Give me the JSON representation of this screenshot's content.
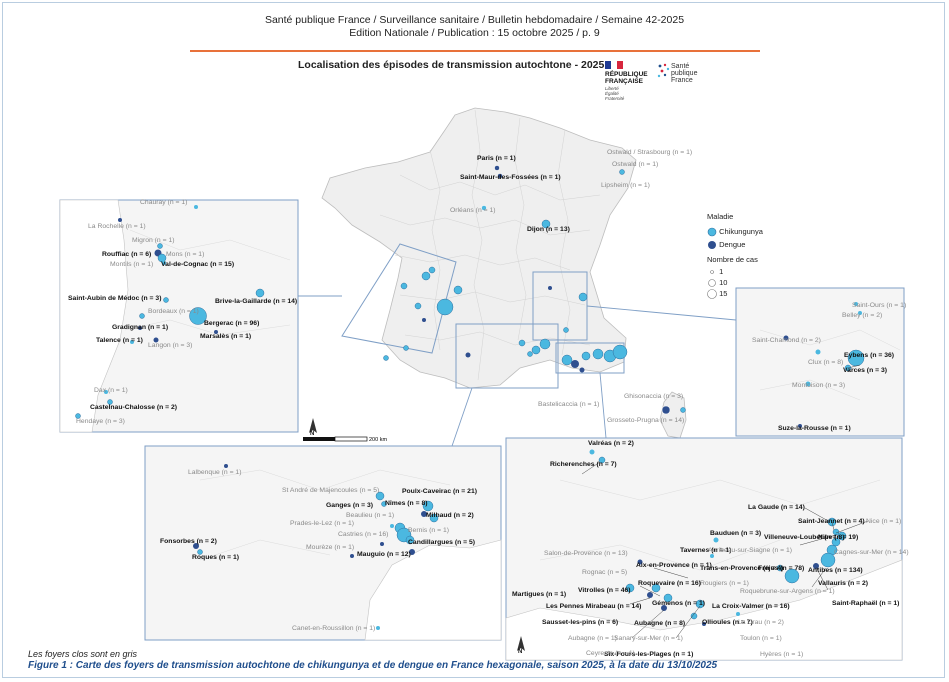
{
  "header": {
    "line1": "Santé publique France / Surveillance sanitaire / Bulletin hebdomadaire / Semaine 42-2025",
    "line2": "Edition Nationale / Publication : 15 octobre 2025 / p. 9"
  },
  "map_title": "Localisation des épisodes de transmission autochtone - 2025",
  "logos": {
    "republique_line1": "RÉPUBLIQUE",
    "republique_line2": "FRANÇAISE",
    "motto": [
      "Liberté",
      "Égalité",
      "Fraternité"
    ],
    "spf_line1": "Santé",
    "spf_line2": "publique",
    "spf_line3": "France"
  },
  "legend": {
    "title": "Maladie",
    "chikungunya": "Chikungunya",
    "dengue": "Dengue",
    "size_title": "Nombre de cas",
    "sizes": [
      "1",
      "10",
      "15"
    ]
  },
  "colors": {
    "chikungunya": "#4bb8e0",
    "dengue": "#2f4f8f",
    "inset_border": "#7f9fc6",
    "accent_rule": "#e8713a",
    "caption": "#1f4e8c"
  },
  "scale_label": "200 km",
  "north_label": "N",
  "footnote": "Les foyers clos sont en gris",
  "caption": "Figure 1 : Carte des foyers de transmission autochtone de chikungunya et de dengue en France hexagonale, saison 2025, à la date du 13/10/2025",
  "labels": {
    "main": [
      {
        "t": "Paris (n = 1)",
        "s": "b"
      },
      {
        "t": "Saint-Maur-des-Fossées (n = 1)",
        "s": "b"
      },
      {
        "t": "Orléans (n = 1)",
        "s": "g"
      },
      {
        "t": "Dijon (n = 13)",
        "s": "b"
      },
      {
        "t": "Ostwald / Strasbourg (n = 1)",
        "s": "g"
      },
      {
        "t": "Ostwald (n = 1)",
        "s": "g"
      },
      {
        "t": "Lipsheim (n = 1)",
        "s": "g"
      },
      {
        "t": "Bastelicaccia (n = 1)",
        "s": "g"
      },
      {
        "t": "Ghisonaccia (n = 3)",
        "s": "g"
      },
      {
        "t": "Grosseto-Prugna (n = 14)",
        "s": "g"
      }
    ],
    "southwest": [
      {
        "t": "Chauray (n = 1)",
        "s": "g"
      },
      {
        "t": "La Rochelle (n = 1)",
        "s": "g"
      },
      {
        "t": "Migron (n = 1)",
        "s": "g"
      },
      {
        "t": "Rouffiac (n = 6)",
        "s": "b"
      },
      {
        "t": "Mons (n = 1)",
        "s": "g"
      },
      {
        "t": "Montils (n = 1)",
        "s": "g"
      },
      {
        "t": "Val-de-Cognac (n = 15)",
        "s": "b"
      },
      {
        "t": "Saint-Aubin de Médoc (n = 3)",
        "s": "b"
      },
      {
        "t": "Bordeaux (n = 1)",
        "s": "g"
      },
      {
        "t": "Brive-la-Gaillarde (n = 14)",
        "s": "b"
      },
      {
        "t": "Gradignan (n = 1)",
        "s": "b"
      },
      {
        "t": "Bergerac (n = 96)",
        "s": "b"
      },
      {
        "t": "Talence (n = 1)",
        "s": "b"
      },
      {
        "t": "Marsalès (n =  1)",
        "s": "b"
      },
      {
        "t": "Langon (n = 3)",
        "s": "g"
      },
      {
        "t": "Dax (n = 1)",
        "s": "g"
      },
      {
        "t": "Castelnau-Chalosse (n = 2)",
        "s": "b"
      },
      {
        "t": "Hendaye (n = 3)",
        "s": "g"
      }
    ],
    "occitanie": [
      {
        "t": "Lalbenque (n = 1)",
        "s": "g"
      },
      {
        "t": "St André de Majencoules (n = 5)",
        "s": "g"
      },
      {
        "t": "Poulx-Caveirac (n = 21)",
        "s": "b"
      },
      {
        "t": "Ganges (n = 3)",
        "s": "b"
      },
      {
        "t": "Nîmes (n = 8)",
        "s": "b"
      },
      {
        "t": "Beaulieu (n = 1)",
        "s": "g"
      },
      {
        "t": "Milhaud (n = 2)",
        "s": "b"
      },
      {
        "t": "Prades-le-Lez (n = 1)",
        "s": "g"
      },
      {
        "t": "Bernis (n = 1)",
        "s": "g"
      },
      {
        "t": "Castries (n = 16)",
        "s": "g"
      },
      {
        "t": "Candillargues (n = 5)",
        "s": "b"
      },
      {
        "t": "Fonsorbes (n = 2)",
        "s": "b"
      },
      {
        "t": "Mourèze (n = 1)",
        "s": "g"
      },
      {
        "t": "Mauguio (n = 12)",
        "s": "b"
      },
      {
        "t": "Roques (n = 1)",
        "s": "b"
      },
      {
        "t": "Canet-en-Roussillon (n = 1)",
        "s": "g"
      }
    ],
    "rhone": [
      {
        "t": "Saint-Ours (n = 1)",
        "s": "g"
      },
      {
        "t": "Belley (n = 2)",
        "s": "g"
      },
      {
        "t": "Saint-Chamond (n = 2)",
        "s": "g"
      },
      {
        "t": "Clux (n = 8)",
        "s": "g"
      },
      {
        "t": "Eybens (n = 36)",
        "s": "b"
      },
      {
        "t": "Varces (n = 3)",
        "s": "b"
      },
      {
        "t": "Montoison (n = 3)",
        "s": "g"
      },
      {
        "t": "Suze-la-Rousse (n = 1)",
        "s": "b"
      }
    ],
    "paca": [
      {
        "t": "Valréas (n = 2)",
        "s": "b"
      },
      {
        "t": "Richerenches (n = 7)",
        "s": "b"
      },
      {
        "t": "La Gaude (n = 14)",
        "s": "b"
      },
      {
        "t": "Saint-Jeannet (n = 4)",
        "s": "b"
      },
      {
        "t": "Nice (n = 1)",
        "s": "g"
      },
      {
        "t": "Bauduen (n = 3)",
        "s": "b"
      },
      {
        "t": "Villeneuve-Loubet (n = 3)",
        "s": "b"
      },
      {
        "t": "Nice (n = 19)",
        "s": "b"
      },
      {
        "t": "Tavernes (n = 1)",
        "s": "b"
      },
      {
        "t": "Auribeau-sur-Siagne (n = 1)",
        "s": "g"
      },
      {
        "t": "Cagnes-sur-Mer (n = 14)",
        "s": "g"
      },
      {
        "t": "Salon-de-Provence (n = 13)",
        "s": "g"
      },
      {
        "t": "Aix-en-Provence (n = 1)",
        "s": "b"
      },
      {
        "t": "Trans-en-Provence (n = 4)",
        "s": "b"
      },
      {
        "t": "Fréjus (n = 78)",
        "s": "b"
      },
      {
        "t": "Antibes (n = 134)",
        "s": "b"
      },
      {
        "t": "Rognac (n = 5)",
        "s": "g"
      },
      {
        "t": "Vallauris (n = 2)",
        "s": "b"
      },
      {
        "t": "Roquevaire (n = 16)",
        "s": "b"
      },
      {
        "t": "Rougiers (n = 1)",
        "s": "g"
      },
      {
        "t": "Roquebrune-sur-Argens (n = 1)",
        "s": "g"
      },
      {
        "t": "Vitrolles (n = 46)",
        "s": "b"
      },
      {
        "t": "Martigues (n = 1)",
        "s": "b"
      },
      {
        "t": "Saint-Raphaël (n = 1)",
        "s": "b"
      },
      {
        "t": "Les Pennes Mirabeau (n = 14)",
        "s": "b"
      },
      {
        "t": "Gémenos (n = 1)",
        "s": "b"
      },
      {
        "t": "La Croix-Valmer (n = 16)",
        "s": "b"
      },
      {
        "t": "Sausset-les-pins (n = 6)",
        "s": "b"
      },
      {
        "t": "Aubagne (n = 8)",
        "s": "b"
      },
      {
        "t": "Ollioules (n = 7)",
        "s": "b"
      },
      {
        "t": "La Crau (n = 2)",
        "s": "g"
      },
      {
        "t": "Aubagne (n = 1)",
        "s": "g"
      },
      {
        "t": "Sanary-sur-Mer (n = 1)",
        "s": "g"
      },
      {
        "t": "Toulon (n = 1)",
        "s": "g"
      },
      {
        "t": "Six-Fours-les-Plages (n = 1)",
        "s": "b"
      },
      {
        "t": "Ceyreste (n = 1)",
        "s": "g"
      },
      {
        "t": "Hyères (n = 1)",
        "s": "g"
      }
    ]
  }
}
